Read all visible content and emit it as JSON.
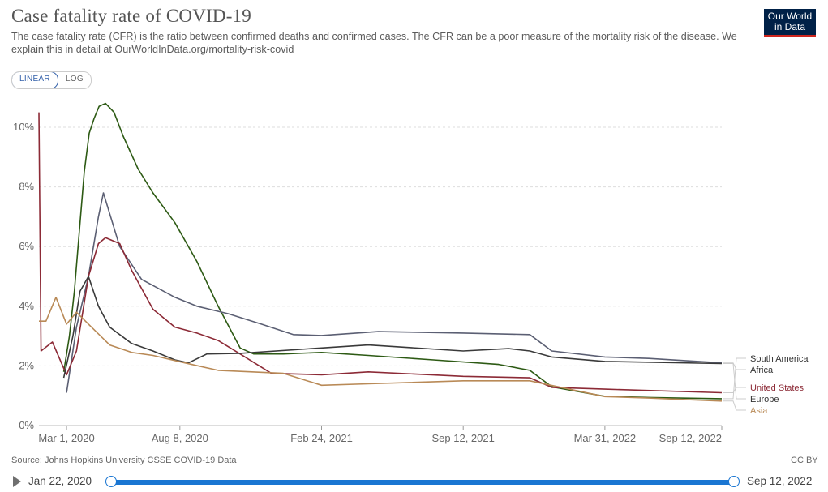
{
  "title": "Case fatality rate of COVID-19",
  "subtitle": "The case fatality rate (CFR) is the ratio between confirmed deaths and confirmed cases. The CFR can be a poor measure of the mortality risk of the disease. We explain this in detail at OurWorldInData.org/mortality-risk-covid",
  "logo": {
    "line1": "Our World",
    "line2": "in Data"
  },
  "scale_toggle": {
    "linear": "LINEAR",
    "log": "LOG",
    "selected": "LINEAR"
  },
  "source": "Source: Johns Hopkins University CSSE COVID-19 Data",
  "license": "CC BY",
  "timeline": {
    "start": "Jan 22, 2020",
    "end": "Sep 12, 2022",
    "range_selected": [
      0,
      1
    ]
  },
  "colors": {
    "South America": "#2d5a14",
    "Africa": "#5b5f73",
    "United States": "#8c2a36",
    "Europe": "#3a3a3a",
    "Asia": "#b98a57"
  },
  "chart_data": {
    "type": "line",
    "x_axis": "date",
    "xlim": [
      "2020-01-22",
      "2022-09-12"
    ],
    "ylim": [
      0,
      11
    ],
    "y_unit": "%",
    "y_ticks": [
      "0%",
      "2%",
      "4%",
      "6%",
      "8%",
      "10%"
    ],
    "y_tick_values": [
      0,
      2,
      4,
      6,
      8,
      10
    ],
    "x_ticks": [
      "Mar 1, 2020",
      "Aug 8, 2020",
      "Feb 24, 2021",
      "Sep 12, 2021",
      "Mar 31, 2022",
      "Sep 12, 2022"
    ],
    "x_tick_dates": [
      "2020-03-01",
      "2020-08-08",
      "2021-02-24",
      "2021-09-12",
      "2022-03-31",
      "2022-09-12"
    ],
    "grid": "horizontal dashed",
    "legend": "right, line-end labels",
    "series": [
      {
        "name": "South America",
        "points": [
          [
            "2020-02-26",
            1.8
          ],
          [
            "2020-03-05",
            3.0
          ],
          [
            "2020-03-12",
            4.5
          ],
          [
            "2020-03-19",
            6.5
          ],
          [
            "2020-03-26",
            8.5
          ],
          [
            "2020-04-02",
            9.8
          ],
          [
            "2020-04-09",
            10.3
          ],
          [
            "2020-04-16",
            10.7
          ],
          [
            "2020-04-25",
            10.8
          ],
          [
            "2020-05-07",
            10.5
          ],
          [
            "2020-05-20",
            9.7
          ],
          [
            "2020-06-10",
            8.6
          ],
          [
            "2020-07-01",
            7.8
          ],
          [
            "2020-08-01",
            6.8
          ],
          [
            "2020-09-01",
            5.5
          ],
          [
            "2020-10-01",
            4.0
          ],
          [
            "2020-11-01",
            2.6
          ],
          [
            "2020-11-20",
            2.4
          ],
          [
            "2021-01-01",
            2.4
          ],
          [
            "2021-02-24",
            2.45
          ],
          [
            "2021-05-01",
            2.35
          ],
          [
            "2021-08-01",
            2.2
          ],
          [
            "2021-11-01",
            2.05
          ],
          [
            "2021-12-15",
            1.85
          ],
          [
            "2022-01-15",
            1.3
          ],
          [
            "2022-03-31",
            0.98
          ],
          [
            "2022-06-01",
            0.94
          ],
          [
            "2022-09-12",
            0.9
          ]
        ]
      },
      {
        "name": "Africa",
        "points": [
          [
            "2020-03-01",
            1.1
          ],
          [
            "2020-03-15",
            3.3
          ],
          [
            "2020-04-01",
            5.0
          ],
          [
            "2020-04-15",
            7.0
          ],
          [
            "2020-04-22",
            7.8
          ],
          [
            "2020-05-01",
            7.1
          ],
          [
            "2020-05-15",
            6.0
          ],
          [
            "2020-06-15",
            4.9
          ],
          [
            "2020-08-01",
            4.3
          ],
          [
            "2020-09-01",
            4.0
          ],
          [
            "2020-10-15",
            3.75
          ],
          [
            "2020-12-01",
            3.4
          ],
          [
            "2021-01-15",
            3.05
          ],
          [
            "2021-02-24",
            3.02
          ],
          [
            "2021-05-15",
            3.15
          ],
          [
            "2021-09-12",
            3.1
          ],
          [
            "2021-12-15",
            3.05
          ],
          [
            "2022-01-15",
            2.5
          ],
          [
            "2022-03-31",
            2.3
          ],
          [
            "2022-06-01",
            2.25
          ],
          [
            "2022-09-12",
            2.1
          ]
        ]
      },
      {
        "name": "United States",
        "points": [
          [
            "2020-01-22",
            10.5
          ],
          [
            "2020-01-25",
            2.5
          ],
          [
            "2020-02-10",
            2.8
          ],
          [
            "2020-03-01",
            1.7
          ],
          [
            "2020-03-15",
            2.5
          ],
          [
            "2020-04-01",
            5.0
          ],
          [
            "2020-04-15",
            6.1
          ],
          [
            "2020-04-25",
            6.3
          ],
          [
            "2020-05-15",
            6.1
          ],
          [
            "2020-06-01",
            5.2
          ],
          [
            "2020-07-01",
            3.9
          ],
          [
            "2020-08-01",
            3.3
          ],
          [
            "2020-09-01",
            3.1
          ],
          [
            "2020-10-01",
            2.85
          ],
          [
            "2020-11-01",
            2.4
          ],
          [
            "2020-12-15",
            1.75
          ],
          [
            "2021-02-24",
            1.7
          ],
          [
            "2021-05-01",
            1.8
          ],
          [
            "2021-09-12",
            1.65
          ],
          [
            "2021-12-15",
            1.6
          ],
          [
            "2022-01-15",
            1.28
          ],
          [
            "2022-03-31",
            1.22
          ],
          [
            "2022-09-12",
            1.1
          ]
        ]
      },
      {
        "name": "Europe",
        "points": [
          [
            "2020-02-26",
            1.6
          ],
          [
            "2020-03-10",
            3.0
          ],
          [
            "2020-03-20",
            4.5
          ],
          [
            "2020-04-01",
            5.0
          ],
          [
            "2020-04-15",
            4.0
          ],
          [
            "2020-05-01",
            3.3
          ],
          [
            "2020-06-01",
            2.75
          ],
          [
            "2020-07-01",
            2.5
          ],
          [
            "2020-08-01",
            2.2
          ],
          [
            "2020-08-20",
            2.1
          ],
          [
            "2020-09-15",
            2.4
          ],
          [
            "2020-11-01",
            2.42
          ],
          [
            "2021-02-24",
            2.6
          ],
          [
            "2021-05-01",
            2.7
          ],
          [
            "2021-09-12",
            2.5
          ],
          [
            "2021-11-15",
            2.58
          ],
          [
            "2021-12-15",
            2.5
          ],
          [
            "2022-01-15",
            2.3
          ],
          [
            "2022-03-31",
            2.15
          ],
          [
            "2022-09-12",
            2.08
          ]
        ]
      },
      {
        "name": "Asia",
        "points": [
          [
            "2020-01-22",
            3.5
          ],
          [
            "2020-02-01",
            3.5
          ],
          [
            "2020-02-15",
            4.3
          ],
          [
            "2020-03-01",
            3.4
          ],
          [
            "2020-03-15",
            3.8
          ],
          [
            "2020-04-01",
            3.4
          ],
          [
            "2020-05-01",
            2.7
          ],
          [
            "2020-06-01",
            2.45
          ],
          [
            "2020-07-01",
            2.35
          ],
          [
            "2020-08-15",
            2.1
          ],
          [
            "2020-10-01",
            1.85
          ],
          [
            "2021-01-01",
            1.75
          ],
          [
            "2021-02-24",
            1.35
          ],
          [
            "2021-05-01",
            1.4
          ],
          [
            "2021-09-12",
            1.5
          ],
          [
            "2021-12-15",
            1.5
          ],
          [
            "2022-03-31",
            0.97
          ],
          [
            "2022-06-01",
            0.92
          ],
          [
            "2022-09-12",
            0.82
          ]
        ]
      }
    ]
  }
}
